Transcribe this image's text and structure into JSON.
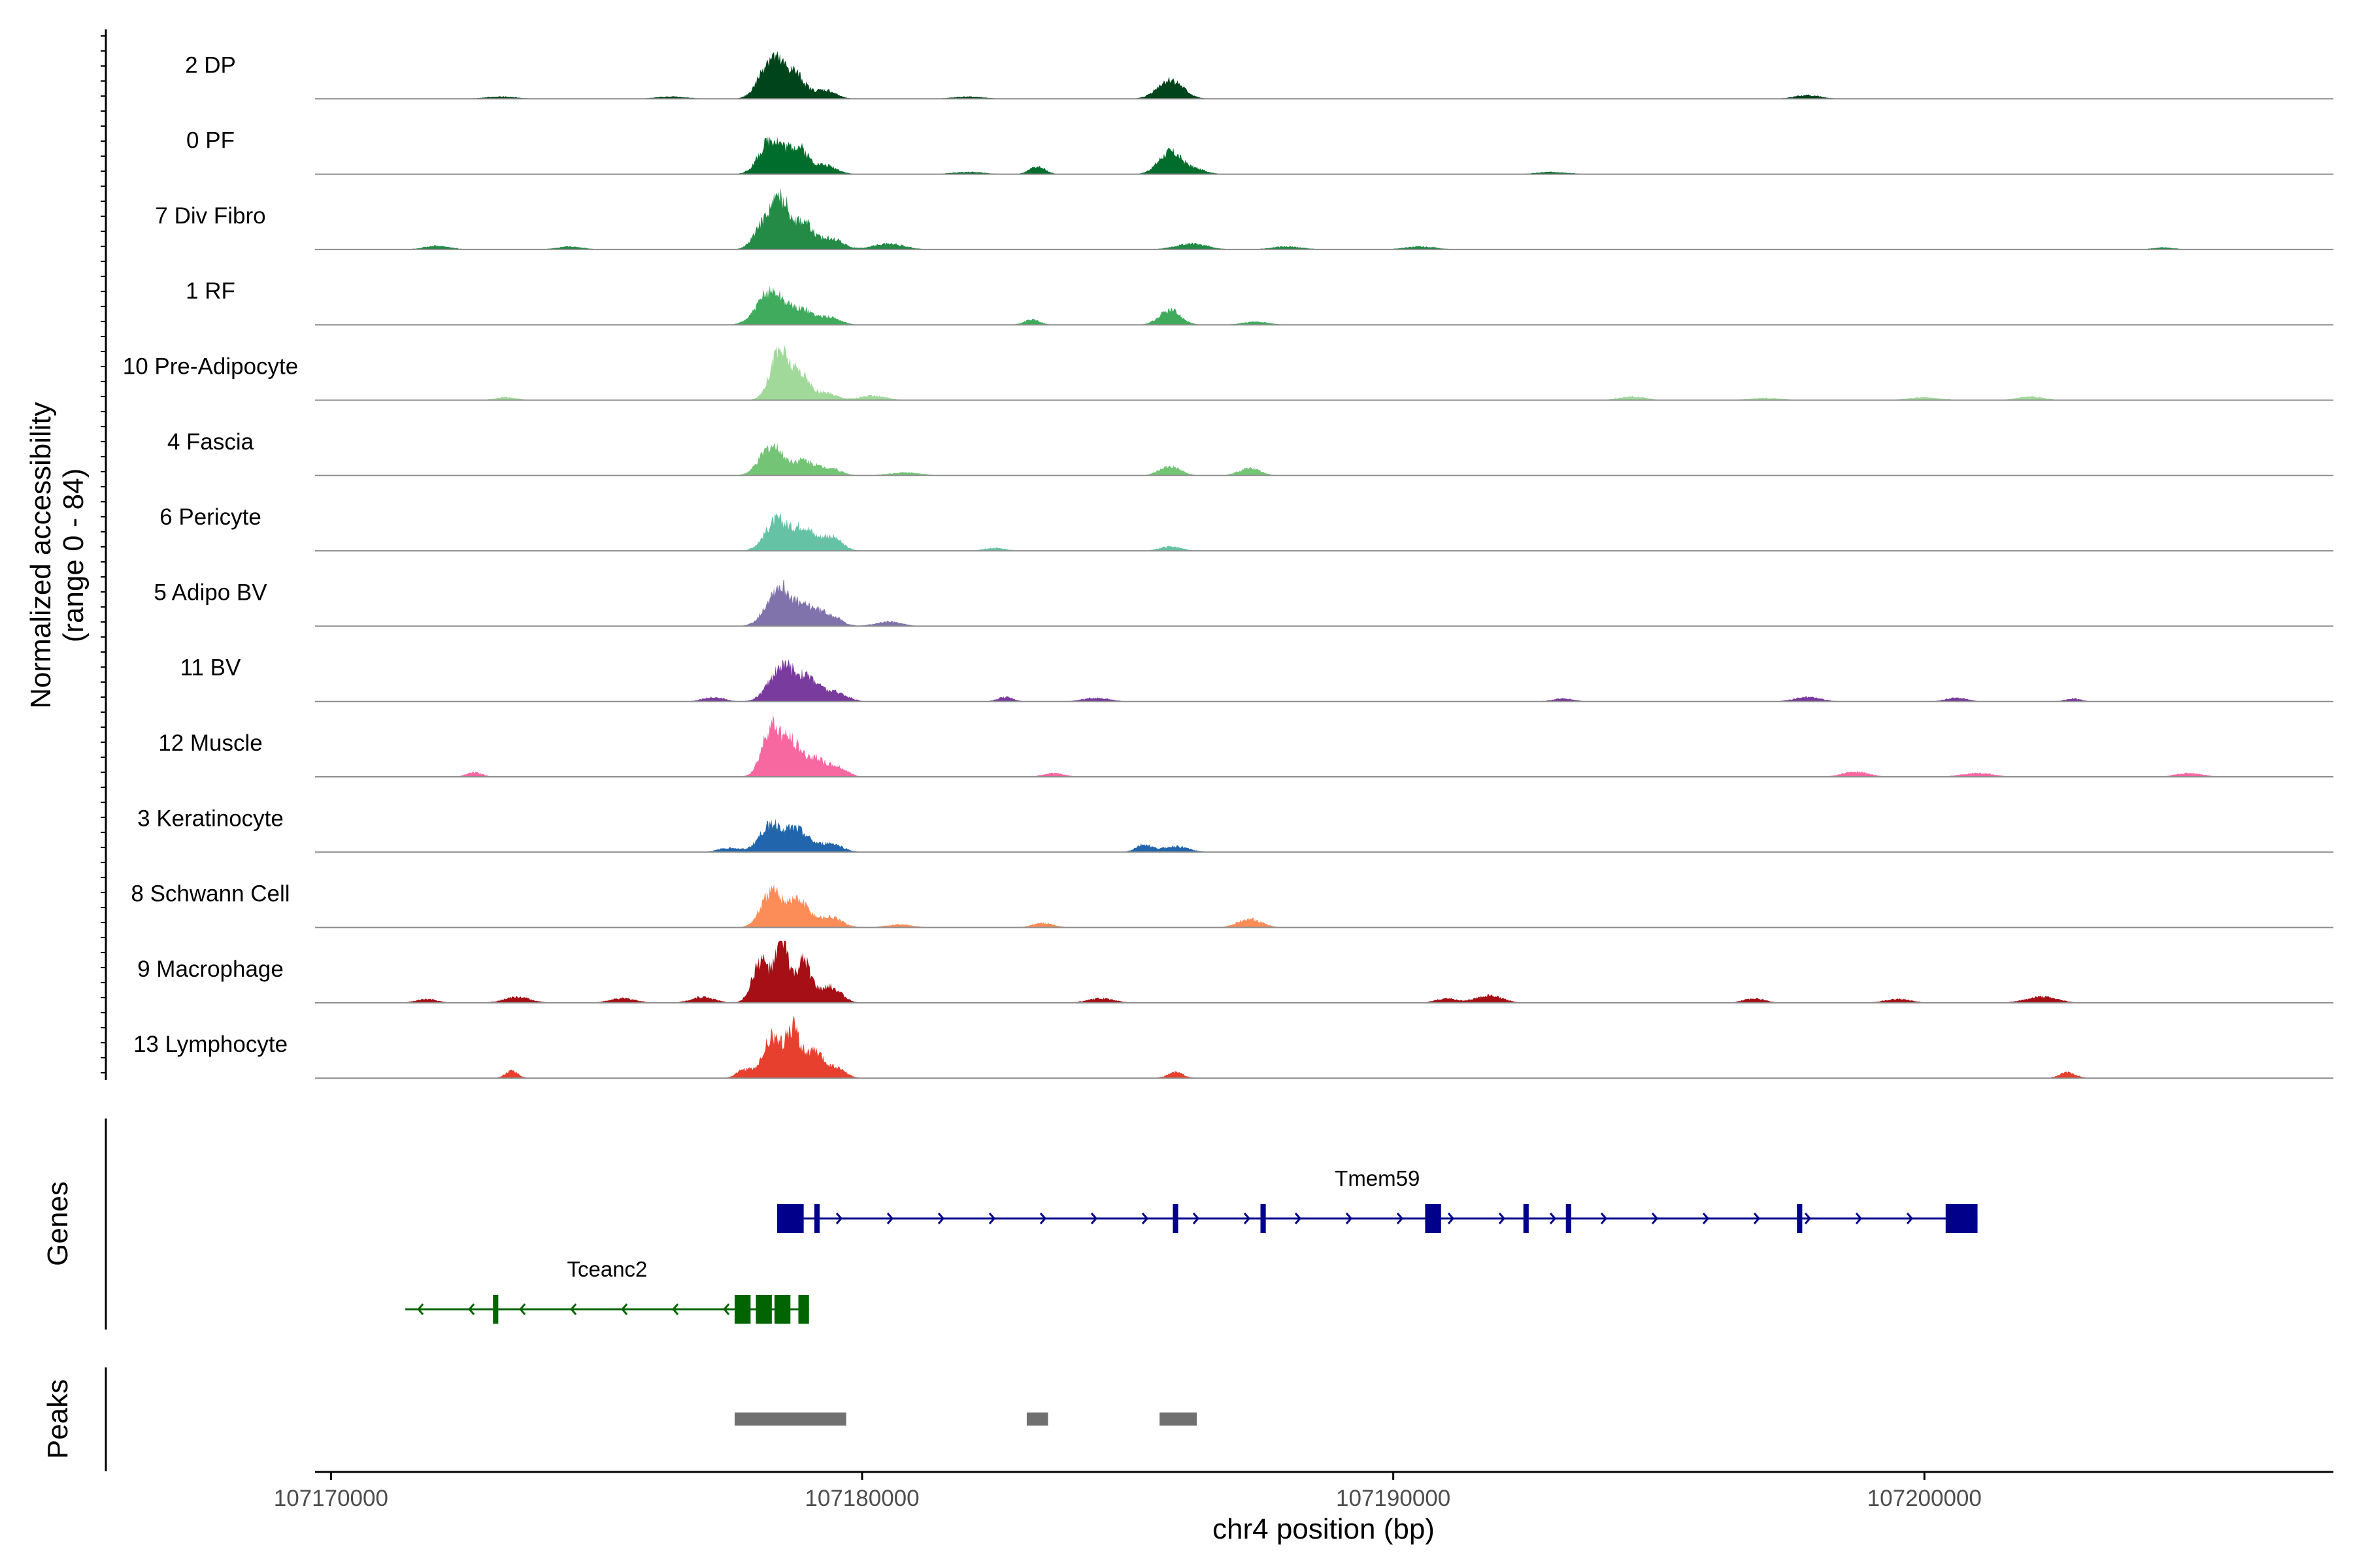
{
  "chart_data": {
    "type": "area",
    "title": "",
    "ylabel": "Normalized accessibility",
    "ylabel_range": "(range 0 - 84)",
    "ylim": [
      0,
      84
    ],
    "xlabel": "chr4 position (bp)",
    "xlim": [
      107169700,
      107207700
    ],
    "x_ticks": [
      107170000,
      107180000,
      107190000,
      107200000
    ],
    "x_tick_labels": [
      "107170000",
      "107180000",
      "107190000",
      "107200000"
    ],
    "series": [
      {
        "name": "2 DP",
        "color": "#00441b",
        "peaks": [
          [
            107178300,
            56,
            220
          ],
          [
            107178750,
            30,
            180
          ],
          [
            107179300,
            12,
            200
          ],
          [
            107185800,
            26,
            240
          ],
          [
            107176400,
            3,
            300
          ],
          [
            107182000,
            3,
            300
          ],
          [
            107197800,
            5,
            250
          ],
          [
            107173200,
            3,
            300
          ]
        ]
      },
      {
        "name": "0 PF",
        "color": "#006d2c",
        "peaks": [
          [
            107178300,
            48,
            220
          ],
          [
            107178800,
            34,
            180
          ],
          [
            107179300,
            12,
            220
          ],
          [
            107183300,
            10,
            150
          ],
          [
            107185800,
            30,
            220
          ],
          [
            107186300,
            6,
            200
          ],
          [
            107182000,
            3,
            300
          ],
          [
            107193000,
            3,
            300
          ]
        ]
      },
      {
        "name": "7 Div Fibro",
        "color": "#238b45",
        "peaks": [
          [
            107178200,
            40,
            200
          ],
          [
            107178500,
            56,
            160
          ],
          [
            107178900,
            36,
            160
          ],
          [
            107179400,
            16,
            220
          ],
          [
            107180500,
            8,
            300
          ],
          [
            107186200,
            8,
            300
          ],
          [
            107172000,
            5,
            250
          ],
          [
            107174500,
            4,
            250
          ],
          [
            107188000,
            4,
            300
          ],
          [
            107190500,
            4,
            300
          ],
          [
            107204500,
            3,
            200
          ]
        ]
      },
      {
        "name": "1 RF",
        "color": "#41ab5d",
        "peaks": [
          [
            107178300,
            46,
            260
          ],
          [
            107178900,
            18,
            200
          ],
          [
            107179400,
            10,
            200
          ],
          [
            107183200,
            7,
            150
          ],
          [
            107185800,
            20,
            200
          ],
          [
            107187400,
            4,
            250
          ]
        ]
      },
      {
        "name": "10 Pre-Adipocyte",
        "color": "#a1d99b",
        "peaks": [
          [
            107178450,
            68,
            180
          ],
          [
            107178850,
            32,
            150
          ],
          [
            107179300,
            10,
            220
          ],
          [
            107180200,
            6,
            250
          ],
          [
            107173300,
            4,
            200
          ],
          [
            107194500,
            5,
            250
          ],
          [
            107197000,
            3,
            300
          ],
          [
            107200000,
            4,
            300
          ],
          [
            107202000,
            5,
            250
          ]
        ]
      },
      {
        "name": "4 Fascia",
        "color": "#74c476",
        "peaks": [
          [
            107178300,
            40,
            220
          ],
          [
            107178900,
            20,
            200
          ],
          [
            107179400,
            10,
            200
          ],
          [
            107185800,
            12,
            200
          ],
          [
            107187300,
            10,
            200
          ],
          [
            107180800,
            4,
            300
          ]
        ]
      },
      {
        "name": "6 Pericyte",
        "color": "#66c2a4",
        "peaks": [
          [
            107178400,
            42,
            220
          ],
          [
            107178900,
            30,
            180
          ],
          [
            107179400,
            20,
            200
          ],
          [
            107182500,
            4,
            200
          ],
          [
            107185800,
            6,
            200
          ]
        ]
      },
      {
        "name": "5 Adipo BV",
        "color": "#8073ac",
        "peaks": [
          [
            107178450,
            54,
            240
          ],
          [
            107179000,
            22,
            200
          ],
          [
            107179400,
            14,
            200
          ],
          [
            107180500,
            6,
            250
          ]
        ]
      },
      {
        "name": "11 BV",
        "color": "#7a3b9e",
        "peaks": [
          [
            107178500,
            48,
            240
          ],
          [
            107179000,
            28,
            200
          ],
          [
            107179500,
            12,
            220
          ],
          [
            107177200,
            6,
            200
          ],
          [
            107182700,
            6,
            150
          ],
          [
            107184400,
            5,
            250
          ],
          [
            107193200,
            4,
            200
          ],
          [
            107197800,
            6,
            250
          ],
          [
            107200600,
            5,
            200
          ],
          [
            107202800,
            4,
            150
          ]
        ]
      },
      {
        "name": "12 Muscle",
        "color": "#f768a1",
        "peaks": [
          [
            107178300,
            68,
            180
          ],
          [
            107178700,
            44,
            160
          ],
          [
            107179100,
            24,
            160
          ],
          [
            107179500,
            14,
            200
          ],
          [
            107172700,
            6,
            150
          ],
          [
            107183600,
            5,
            200
          ],
          [
            107198700,
            7,
            250
          ],
          [
            107201000,
            5,
            300
          ],
          [
            107205000,
            5,
            250
          ]
        ]
      },
      {
        "name": "3 Keratinocyte",
        "color": "#2166ac",
        "peaks": [
          [
            107178300,
            38,
            220
          ],
          [
            107178800,
            28,
            200
          ],
          [
            107179400,
            12,
            220
          ],
          [
            107185300,
            10,
            150
          ],
          [
            107185900,
            8,
            250
          ],
          [
            107177500,
            6,
            200
          ]
        ]
      },
      {
        "name": "8 Schwann Cell",
        "color": "#fc8d59",
        "peaks": [
          [
            107178300,
            48,
            200
          ],
          [
            107178800,
            36,
            200
          ],
          [
            107179400,
            14,
            220
          ],
          [
            107183400,
            6,
            200
          ],
          [
            107187300,
            12,
            220
          ],
          [
            107180700,
            4,
            250
          ]
        ]
      },
      {
        "name": "9 Macrophage",
        "color": "#a50f15",
        "peaks": [
          [
            107178100,
            58,
            160
          ],
          [
            107178500,
            84,
            120
          ],
          [
            107178900,
            56,
            140
          ],
          [
            107179400,
            22,
            200
          ],
          [
            107177000,
            8,
            220
          ],
          [
            107173500,
            8,
            250
          ],
          [
            107175500,
            6,
            250
          ],
          [
            107191800,
            10,
            250
          ],
          [
            107191000,
            6,
            200
          ],
          [
            107202200,
            8,
            300
          ],
          [
            107171800,
            5,
            200
          ],
          [
            107184500,
            6,
            250
          ],
          [
            107196800,
            6,
            200
          ],
          [
            107199500,
            5,
            250
          ]
        ]
      },
      {
        "name": "13 Lymphocyte",
        "color": "#e8402e",
        "peaks": [
          [
            107178300,
            56,
            160
          ],
          [
            107178700,
            66,
            140
          ],
          [
            107179100,
            34,
            160
          ],
          [
            107179500,
            14,
            180
          ],
          [
            107177800,
            12,
            150
          ],
          [
            107173400,
            10,
            120
          ],
          [
            107185900,
            8,
            150
          ],
          [
            107202700,
            8,
            150
          ]
        ]
      }
    ],
    "genes_label": "Genes",
    "genes": [
      {
        "name": "Tmem59",
        "strand": "+",
        "color": "#00008b",
        "start": 107178400,
        "end": 107201000,
        "exons": [
          [
            107178400,
            107178900
          ],
          [
            107179100,
            107179200
          ],
          [
            107185850,
            107185950
          ],
          [
            107187500,
            107187600
          ],
          [
            107190600,
            107190900
          ],
          [
            107192450,
            107192550
          ],
          [
            107193250,
            107193350
          ],
          [
            107197600,
            107197700
          ],
          [
            107200400,
            107201000
          ]
        ]
      },
      {
        "name": "Tceanc2",
        "strand": "-",
        "color": "#006400",
        "start": 107171400,
        "end": 107179000,
        "exons": [
          [
            107177600,
            107177900
          ],
          [
            107178000,
            107178300
          ],
          [
            107178350,
            107178650
          ],
          [
            107178800,
            107179000
          ],
          [
            107173050,
            107173150
          ]
        ]
      }
    ],
    "peaks_label": "Peaks",
    "peaks": [
      [
        107177600,
        107179700
      ],
      [
        107183100,
        107183500
      ],
      [
        107185600,
        107186300
      ]
    ],
    "peak_color": "#707070"
  }
}
